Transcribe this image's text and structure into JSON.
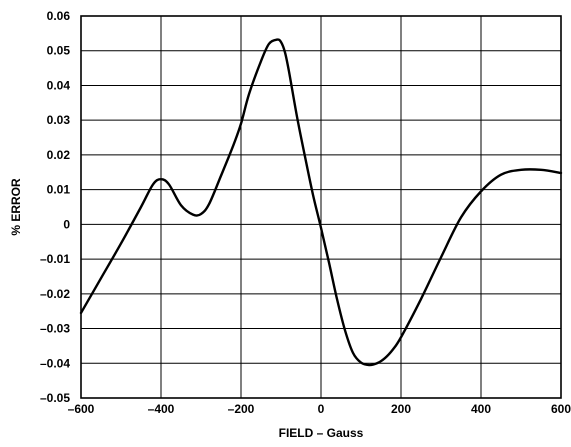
{
  "chart_data": {
    "type": "line",
    "title": "",
    "xlabel": "FIELD – Gauss",
    "ylabel": "% ERROR",
    "xlim": [
      -600,
      600
    ],
    "ylim": [
      -0.05,
      0.06
    ],
    "grid": true,
    "legend": "none",
    "line_color": "#000000",
    "x_ticks": [
      -600,
      -400,
      -200,
      0,
      200,
      400,
      600
    ],
    "x_tick_labels": [
      "–600",
      "–400",
      "–200",
      "0",
      "200",
      "400",
      "600"
    ],
    "y_ticks": [
      0.06,
      0.05,
      0.04,
      0.03,
      0.02,
      0.01,
      0,
      -0.01,
      -0.02,
      -0.03,
      -0.04,
      -0.05
    ],
    "y_tick_labels": [
      "0.06",
      "0.05",
      "0.04",
      "0.03",
      "0.02",
      "0.01",
      "0",
      "–0.01",
      "–0.02",
      "–0.03",
      "–0.04",
      "–0.05"
    ],
    "series": [
      {
        "x": [
          -600,
          -550,
          -500,
          -450,
          -420,
          -400,
          -380,
          -350,
          -320,
          -300,
          -280,
          -250,
          -220,
          -200,
          -180,
          -150,
          -130,
          -110,
          -100,
          -90,
          -80,
          -60,
          -40,
          -20,
          0,
          20,
          40,
          60,
          80,
          100,
          120,
          140,
          160,
          180,
          200,
          250,
          300,
          350,
          400,
          450,
          500,
          550,
          600
        ],
        "y": [
          -0.0255,
          -0.0155,
          -0.0055,
          0.005,
          0.0115,
          0.013,
          0.0115,
          0.0055,
          0.0028,
          0.003,
          0.0058,
          0.014,
          0.0225,
          0.029,
          0.0375,
          0.047,
          0.052,
          0.0532,
          0.0525,
          0.0495,
          0.044,
          0.031,
          0.0195,
          0.0085,
          -0.001,
          -0.011,
          -0.0215,
          -0.0305,
          -0.037,
          -0.0398,
          -0.0405,
          -0.04,
          -0.0385,
          -0.036,
          -0.0325,
          -0.0215,
          -0.0095,
          0.002,
          0.0095,
          0.0143,
          0.0157,
          0.0157,
          0.0148
        ]
      }
    ]
  }
}
